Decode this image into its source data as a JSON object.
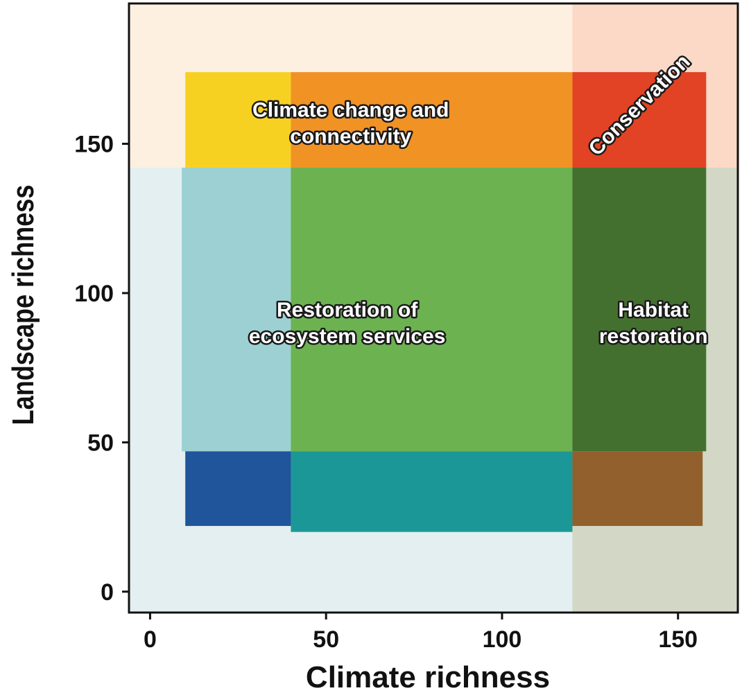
{
  "chart_data": {
    "type": "heatmap",
    "title": "",
    "xlabel": "Climate richness",
    "ylabel": "Landscape richness",
    "xlim": [
      -6,
      167
    ],
    "ylim": [
      -7,
      197
    ],
    "x_ticks": [
      0,
      50,
      100,
      150
    ],
    "y_ticks": [
      0,
      50,
      100,
      150
    ],
    "grid": false,
    "legend": "none",
    "thresholds": {
      "x_low": 40,
      "x_high": 120,
      "y_low": 47,
      "y_high": 142
    },
    "background_zones": [
      {
        "name": "upper-left",
        "x": [
          -6,
          120
        ],
        "y": [
          142,
          197
        ],
        "color": "#fdf0e0"
      },
      {
        "name": "upper-right",
        "x": [
          120,
          167
        ],
        "y": [
          142,
          197
        ],
        "color": "#fbd9c6"
      },
      {
        "name": "lower-left",
        "x": [
          -6,
          120
        ],
        "y": [
          -7,
          142
        ],
        "color": "#e3eff0"
      },
      {
        "name": "lower-right",
        "x": [
          120,
          167
        ],
        "y": [
          -7,
          142
        ],
        "color": "#d3d8c6"
      }
    ],
    "cells": [
      {
        "name": "low-climate-high-landscape",
        "x": [
          10,
          40
        ],
        "y": [
          142,
          174
        ],
        "color": "#f7cf17"
      },
      {
        "name": "mid-climate-high-landscape",
        "x": [
          40,
          120
        ],
        "y": [
          142,
          174
        ],
        "color": "#f08c1a"
      },
      {
        "name": "high-climate-high-landscape",
        "x": [
          120,
          158
        ],
        "y": [
          142,
          174
        ],
        "color": "#df3b1b"
      },
      {
        "name": "low-climate-mid-landscape",
        "x": [
          9,
          40
        ],
        "y": [
          47,
          142
        ],
        "color": "#99cdd1"
      },
      {
        "name": "mid-climate-mid-landscape",
        "x": [
          40,
          120
        ],
        "y": [
          47,
          142
        ],
        "color": "#65ae48"
      },
      {
        "name": "high-climate-mid-landscape",
        "x": [
          120,
          158
        ],
        "y": [
          47,
          142
        ],
        "color": "#3c6a27"
      },
      {
        "name": "low-climate-low-landscape",
        "x": [
          10,
          40
        ],
        "y": [
          22,
          47
        ],
        "color": "#154c96"
      },
      {
        "name": "mid-climate-low-landscape",
        "x": [
          40,
          120
        ],
        "y": [
          20,
          47
        ],
        "color": "#119192"
      },
      {
        "name": "high-climate-low-landscape",
        "x": [
          120,
          157
        ],
        "y": [
          22,
          47
        ],
        "color": "#8e5a24"
      }
    ],
    "annotations": [
      {
        "name": "climate-change-label",
        "lines": [
          "Climate change and",
          "connectivity"
        ],
        "x": 57,
        "y": 157,
        "rotate": 0
      },
      {
        "name": "conservation-label",
        "lines": [
          "Conservation"
        ],
        "x": 139,
        "y": 163,
        "rotate": -45
      },
      {
        "name": "restoration-label",
        "lines": [
          "Restoration of",
          "ecosystem services"
        ],
        "x": 56,
        "y": 90,
        "rotate": 0
      },
      {
        "name": "habitat-label",
        "lines": [
          "Habitat",
          "restoration"
        ],
        "x": 143,
        "y": 90,
        "rotate": 0
      }
    ]
  }
}
